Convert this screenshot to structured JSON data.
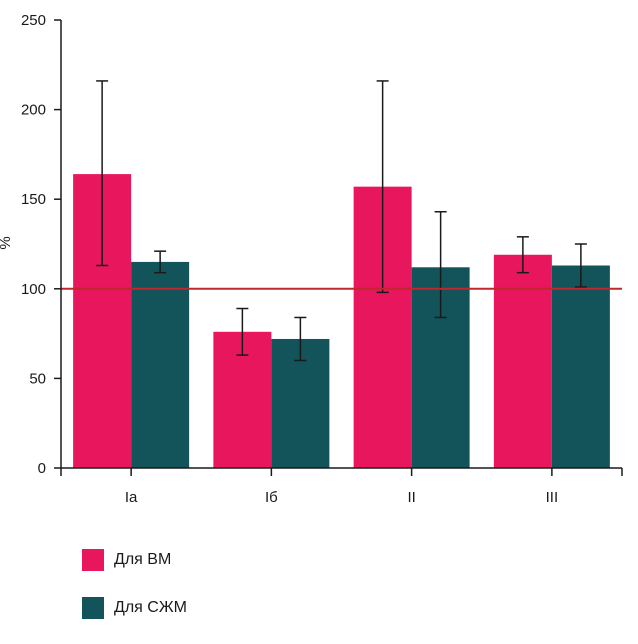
{
  "chart_data": {
    "type": "bar",
    "categories": [
      "Ia",
      "Iб",
      "II",
      "III"
    ],
    "series": [
      {
        "name": "Для ВМ",
        "color": "#e8175d",
        "values": [
          164,
          76,
          157,
          119
        ],
        "error_low": [
          113,
          63,
          98,
          109
        ],
        "error_high": [
          216,
          89,
          216,
          129
        ]
      },
      {
        "name": "Для СЖМ",
        "color": "#12545a",
        "values": [
          115,
          72,
          112,
          113
        ],
        "error_low": [
          109,
          60,
          84,
          101
        ],
        "error_high": [
          121,
          84,
          143,
          125
        ]
      }
    ],
    "reference_line": {
      "value": 100,
      "color": "#c0272d"
    },
    "ylabel": "%",
    "xlabel": "",
    "ylim": [
      0,
      250
    ],
    "yticks": [
      0,
      50,
      100,
      150,
      200,
      250
    ],
    "grid": false,
    "legend_position": "bottom-left"
  }
}
